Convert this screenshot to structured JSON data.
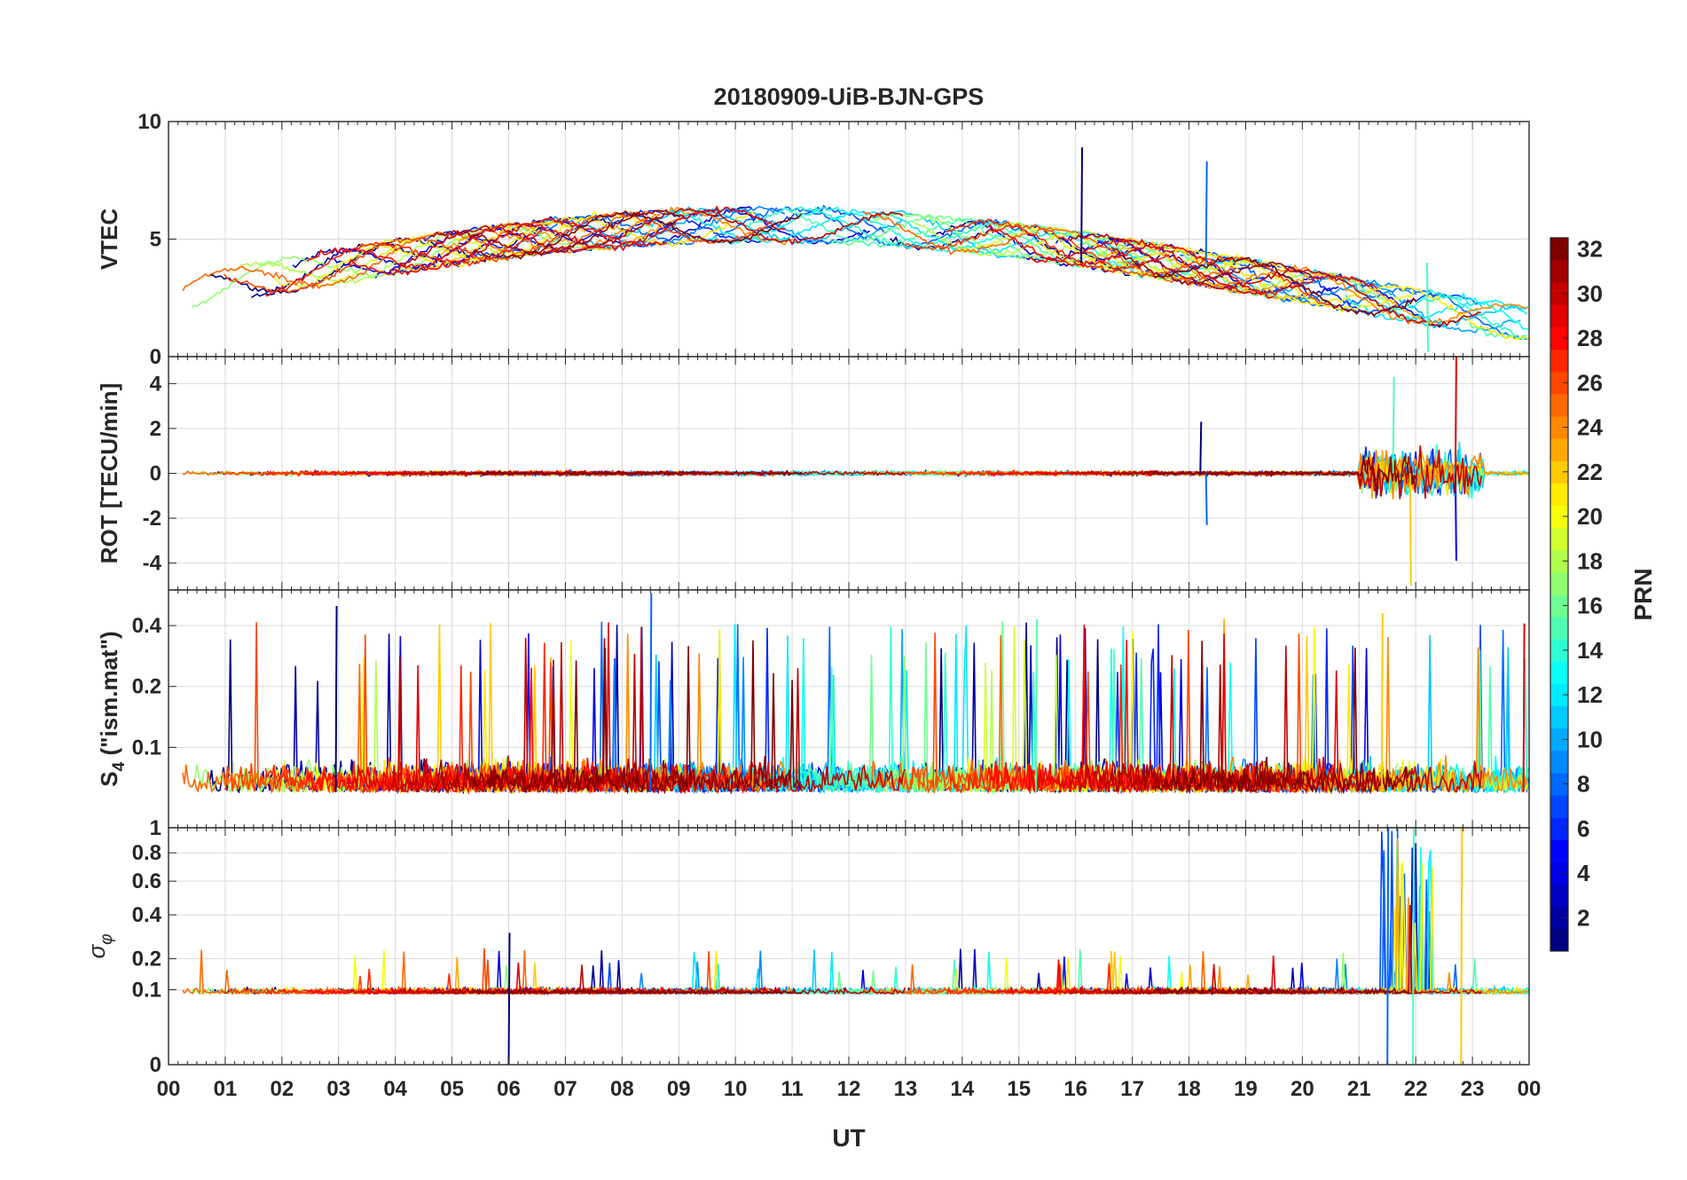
{
  "figure": {
    "title": "20180909-UiB-BJN-GPS",
    "xlabel": "UT",
    "x_ticks": [
      "00",
      "01",
      "02",
      "03",
      "04",
      "05",
      "06",
      "07",
      "08",
      "09",
      "10",
      "11",
      "12",
      "13",
      "14",
      "15",
      "16",
      "17",
      "18",
      "19",
      "20",
      "21",
      "22",
      "23",
      "00"
    ]
  },
  "colorbar": {
    "label": "PRN",
    "range": [
      1,
      32
    ],
    "ticks": [
      "2",
      "4",
      "6",
      "8",
      "10",
      "12",
      "14",
      "16",
      "18",
      "20",
      "22",
      "24",
      "26",
      "28",
      "30",
      "32"
    ],
    "colormap": "jet"
  },
  "chart_data": [
    {
      "type": "line",
      "panel": "vtec",
      "ylabel": "VTEC",
      "ylim": [
        0,
        10
      ],
      "y_ticks": [
        "0",
        "5",
        "10"
      ],
      "x_unit": "hours UT",
      "xlim": [
        0,
        24
      ],
      "series_count": 32,
      "series_color_by": "PRN",
      "grid": true,
      "highlights": [
        {
          "x": 16.1,
          "y": 8.9
        },
        {
          "x": 18.3,
          "y": 8.3
        },
        {
          "x": 22.2,
          "y": 0.2
        }
      ]
    },
    {
      "type": "line",
      "panel": "rot",
      "ylabel": "ROT [TECU/min]",
      "ylim": [
        -5.2,
        5.2
      ],
      "y_ticks": [
        "-4",
        "-2",
        "0",
        "2",
        "4"
      ],
      "x_unit": "hours UT",
      "xlim": [
        0,
        24
      ],
      "series_count": 32,
      "series_color_by": "PRN",
      "grid": true,
      "highlights": [
        {
          "x": 18.2,
          "y": 2.3
        },
        {
          "x": 18.3,
          "y": -2.3
        },
        {
          "x": 21.6,
          "y": 4.3
        },
        {
          "x": 21.9,
          "y": -5.0
        },
        {
          "x": 22.7,
          "y": 5.2
        },
        {
          "x": 22.7,
          "y": -3.9
        }
      ]
    },
    {
      "type": "line",
      "panel": "s4",
      "ylabel": "S4 (\"ism.mat\")",
      "ylabel_main": "S",
      "ylabel_sub": "4",
      "ylabel_rest": " (\"ism.mat\")",
      "ylim": [
        0.04,
        0.6
      ],
      "y_scale": "log",
      "y_ticks": [
        "0.1",
        "0.2",
        "0.4"
      ],
      "x_unit": "hours UT",
      "xlim": [
        0,
        24
      ],
      "series_count": 32,
      "series_color_by": "PRN",
      "grid": true,
      "highlights": [
        {
          "x": 2.95,
          "y": 0.5
        },
        {
          "x": 8.5,
          "y": 0.58
        },
        {
          "x": 15.3,
          "y": 0.43
        },
        {
          "x": 21.4,
          "y": 0.46
        },
        {
          "x": 23.9,
          "y": 0.41
        }
      ]
    },
    {
      "type": "line",
      "panel": "sigma_phi",
      "ylabel": "σ φ",
      "ylabel_main": "σ",
      "ylabel_sub": "φ",
      "ylim": [
        0,
        1
      ],
      "y_scale": "sqrt",
      "y_ticks": [
        "0",
        "0.1",
        "0.2",
        "0.4",
        "0.6",
        "0.8",
        "1"
      ],
      "x_unit": "hours UT",
      "xlim": [
        0,
        24
      ],
      "series_count": 32,
      "series_color_by": "PRN",
      "grid": true,
      "highlights": [
        {
          "x": 6.0,
          "y": 0.31
        },
        {
          "x": 21.5,
          "y": 1.0
        },
        {
          "x": 21.95,
          "y": 1.0
        },
        {
          "x": 22.8,
          "y": 1.0
        }
      ]
    }
  ]
}
